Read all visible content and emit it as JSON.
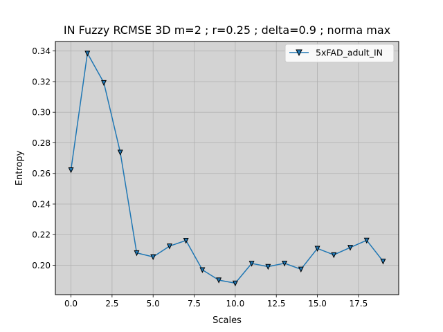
{
  "chart_data": {
    "type": "line",
    "title": "IN Fuzzy RCMSE 3D m=2 ; r=0.25 ; delta=0.9 ; norma max",
    "xlabel": "Scales",
    "ylabel": "Entropy",
    "xlim": [
      -0.95,
      19.95
    ],
    "ylim": [
      0.1808,
      0.3462
    ],
    "xticks": [
      0.0,
      2.5,
      5.0,
      7.5,
      10.0,
      12.5,
      15.0,
      17.5
    ],
    "xtick_labels": [
      "0.0",
      "2.5",
      "5.0",
      "7.5",
      "10.0",
      "12.5",
      "15.0",
      "17.5"
    ],
    "yticks": [
      0.2,
      0.22,
      0.24,
      0.26,
      0.28,
      0.3,
      0.32,
      0.34
    ],
    "ytick_labels": [
      "0.20",
      "0.22",
      "0.24",
      "0.26",
      "0.28",
      "0.30",
      "0.32",
      "0.34"
    ],
    "grid": true,
    "background_color": "#d3d3d3",
    "legend_position": "upper right",
    "series": [
      {
        "name": "5xFAD_adult_IN",
        "color": "#1f77b4",
        "marker": "triangle-down",
        "marker_face_color": "#1f77b4",
        "marker_edge_color": "#000000",
        "x": [
          0,
          1,
          2,
          3,
          4,
          5,
          6,
          7,
          8,
          9,
          10,
          11,
          12,
          13,
          14,
          15,
          16,
          17,
          18,
          19
        ],
        "y": [
          0.2623,
          0.3385,
          0.3193,
          0.2738,
          0.2081,
          0.2055,
          0.2125,
          0.2162,
          0.197,
          0.1903,
          0.1883,
          0.2012,
          0.1991,
          0.2013,
          0.1974,
          0.211,
          0.2068,
          0.2116,
          0.2163,
          0.2026
        ]
      }
    ]
  }
}
